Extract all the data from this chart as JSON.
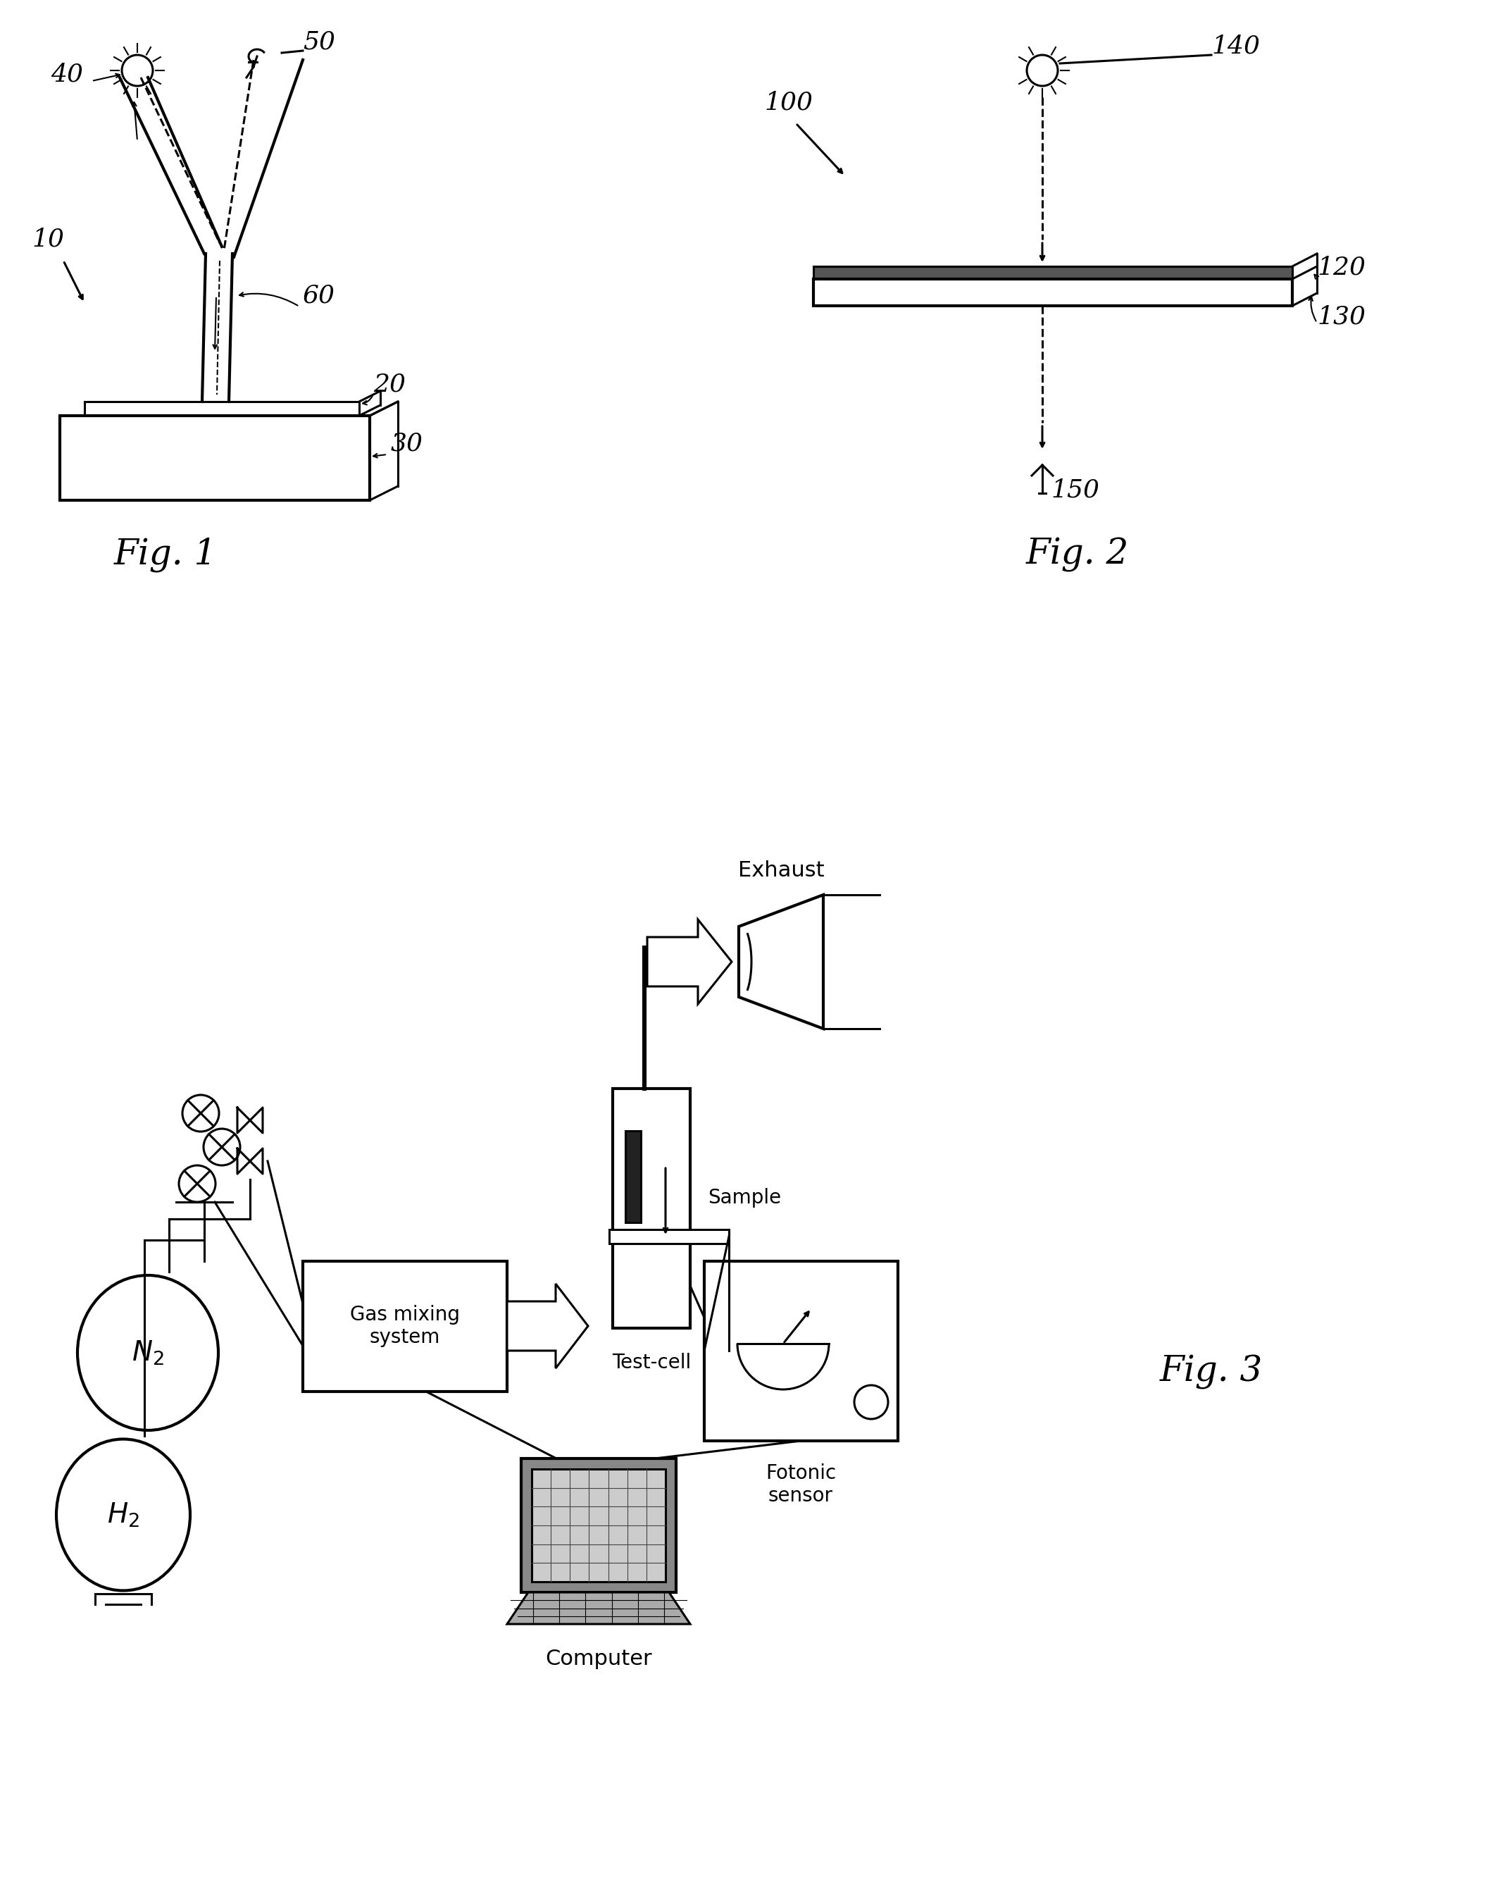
{
  "fig_width": 21.37,
  "fig_height": 26.64,
  "bg_color": "#ffffff",
  "lc": "#000000",
  "lw": 2.2,
  "lw_thick": 3.0,
  "lw_thin": 1.5,
  "fig1_label": "Fig. 1",
  "fig2_label": "Fig. 2",
  "fig3_label": "Fig. 3",
  "labels_fig1": [
    "40",
    "50",
    "10",
    "60",
    "20",
    "30"
  ],
  "labels_fig2": [
    "100",
    "140",
    "120",
    "130",
    "150"
  ],
  "labels_fig3": [
    "Test-cell",
    "Sample",
    "Gas mixing\nsystem",
    "Fotonic\nsensor",
    "Computer",
    "N₂",
    "H₂",
    "Exhaust"
  ]
}
